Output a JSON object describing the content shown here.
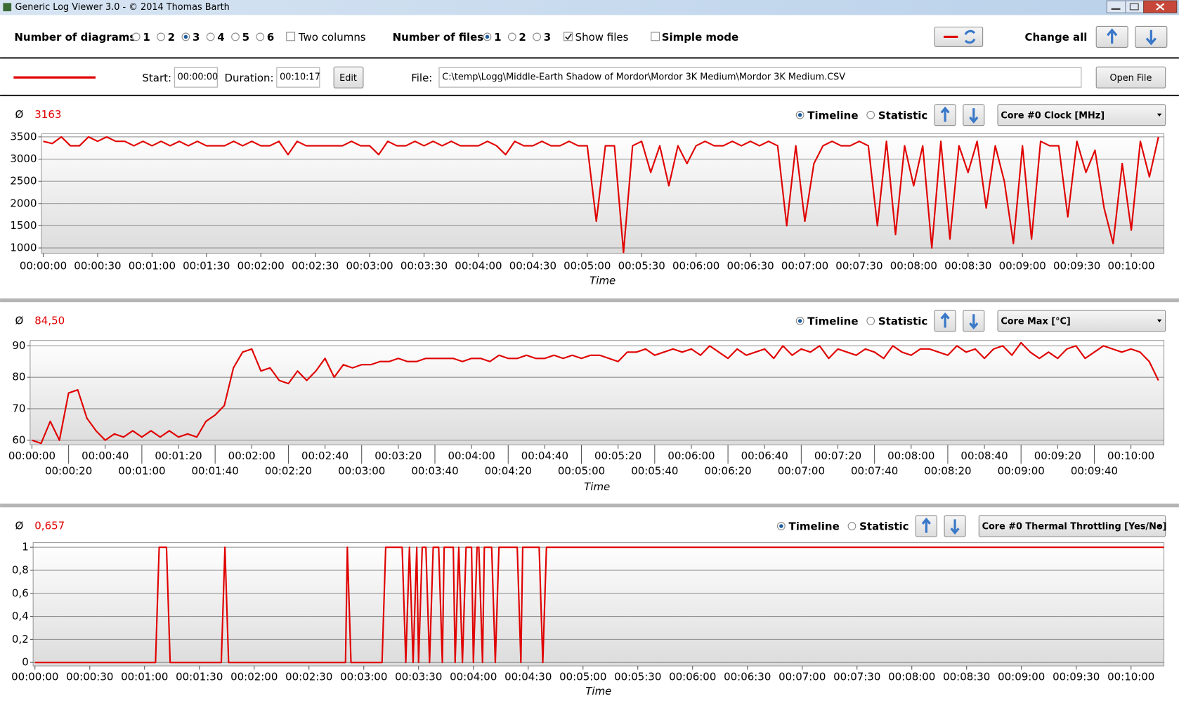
{
  "window": {
    "title": "Generic Log Viewer 3.0 - © 2014 Thomas Barth"
  },
  "toolbar": {
    "diagrams_label": "Number of diagrams",
    "diagram_options": [
      {
        "label": "1",
        "checked": false
      },
      {
        "label": "2",
        "checked": false
      },
      {
        "label": "3",
        "checked": true
      },
      {
        "label": "4",
        "checked": false
      },
      {
        "label": "5",
        "checked": false
      },
      {
        "label": "6",
        "checked": false
      }
    ],
    "two_columns": {
      "label": "Two columns",
      "checked": false
    },
    "files_label": "Number of files",
    "file_options": [
      {
        "label": "1",
        "checked": true
      },
      {
        "label": "2",
        "checked": false
      },
      {
        "label": "3",
        "checked": false
      }
    ],
    "show_files": {
      "label": "Show files",
      "checked": true
    },
    "simple_mode": {
      "label": "Simple mode",
      "checked": false
    },
    "change_all": "Change all"
  },
  "file_bar": {
    "start_label": "Start:",
    "start": "00:00:00",
    "duration_label": "Duration:",
    "duration": "00:10:17",
    "edit": "Edit",
    "file_label": "File:",
    "file_path": "C:\\temp\\Logg\\Middle-Earth Shadow of Mordor\\Mordor 3K Medium\\Mordor 3K Medium.CSV",
    "open_file": "Open File"
  },
  "panels": [
    {
      "average_symbol": "Ø",
      "average": "3163",
      "timeline": {
        "label": "Timeline",
        "checked": true
      },
      "statistic": {
        "label": "Statistic",
        "checked": false
      },
      "sensor": "Core #0 Clock [MHz]"
    },
    {
      "average_symbol": "Ø",
      "average": "84,50",
      "timeline": {
        "label": "Timeline",
        "checked": true
      },
      "statistic": {
        "label": "Statistic",
        "checked": false
      },
      "sensor": "Core Max [°C]"
    },
    {
      "average_symbol": "Ø",
      "average": "0,657",
      "timeline": {
        "label": "Timeline",
        "checked": true
      },
      "statistic": {
        "label": "Statistic",
        "checked": false
      },
      "sensor": "Core #0 Thermal Throttling [Yes/No]"
    }
  ],
  "chart_data": [
    {
      "type": "line",
      "x_label": "Time",
      "color": "#e00000",
      "grid": true,
      "xlim": [
        -1,
        618
      ],
      "ylim": [
        880,
        3570
      ],
      "x": [
        0,
        5,
        10,
        15,
        20,
        25,
        30,
        35,
        40,
        45,
        50,
        55,
        60,
        65,
        70,
        75,
        80,
        85,
        90,
        95,
        100,
        105,
        110,
        115,
        120,
        125,
        130,
        135,
        140,
        145,
        150,
        155,
        160,
        165,
        170,
        175,
        180,
        185,
        190,
        195,
        200,
        205,
        210,
        215,
        220,
        225,
        230,
        235,
        240,
        245,
        250,
        255,
        260,
        265,
        270,
        275,
        280,
        285,
        290,
        295,
        300,
        305,
        310,
        315,
        320,
        325,
        330,
        335,
        340,
        345,
        350,
        355,
        360,
        365,
        370,
        375,
        380,
        385,
        390,
        395,
        400,
        405,
        410,
        415,
        420,
        425,
        430,
        435,
        440,
        445,
        450,
        455,
        460,
        465,
        470,
        475,
        480,
        485,
        490,
        495,
        500,
        505,
        510,
        515,
        520,
        525,
        530,
        535,
        540,
        545,
        550,
        555,
        560,
        565,
        570,
        575,
        580,
        585,
        590,
        595,
        600,
        605,
        610,
        615
      ],
      "values": [
        3400,
        3350,
        3500,
        3300,
        3300,
        3500,
        3400,
        3500,
        3400,
        3400,
        3300,
        3400,
        3300,
        3400,
        3300,
        3400,
        3300,
        3400,
        3300,
        3300,
        3300,
        3400,
        3300,
        3400,
        3300,
        3300,
        3400,
        3100,
        3400,
        3300,
        3300,
        3300,
        3300,
        3300,
        3400,
        3300,
        3300,
        3100,
        3400,
        3300,
        3300,
        3400,
        3300,
        3400,
        3300,
        3400,
        3300,
        3300,
        3300,
        3400,
        3300,
        3100,
        3400,
        3300,
        3300,
        3400,
        3300,
        3300,
        3400,
        3300,
        3300,
        1600,
        3300,
        3300,
        900,
        3300,
        3400,
        2700,
        3300,
        2400,
        3300,
        2900,
        3300,
        3400,
        3300,
        3300,
        3400,
        3300,
        3400,
        3300,
        3400,
        3300,
        1500,
        3300,
        1600,
        2900,
        3300,
        3400,
        3300,
        3300,
        3400,
        3300,
        1500,
        3400,
        1300,
        3300,
        2400,
        3300,
        1000,
        3400,
        1200,
        3300,
        2700,
        3400,
        1900,
        3300,
        2500,
        1100,
        3300,
        1200,
        3400,
        3300,
        3300,
        1700,
        3400,
        2700,
        3200,
        1900,
        1100,
        2900,
        1400,
        3400,
        2600,
        3500
      ],
      "yticks": [
        1000,
        1500,
        2000,
        2500,
        3000,
        3500
      ],
      "xticks": [
        {
          "value": 0,
          "label": "00:00:00"
        },
        {
          "value": 30,
          "label": "00:00:30"
        },
        {
          "value": 60,
          "label": "00:01:00"
        },
        {
          "value": 90,
          "label": "00:01:30"
        },
        {
          "value": 120,
          "label": "00:02:00"
        },
        {
          "value": 150,
          "label": "00:02:30"
        },
        {
          "value": 180,
          "label": "00:03:00"
        },
        {
          "value": 210,
          "label": "00:03:30"
        },
        {
          "value": 240,
          "label": "00:04:00"
        },
        {
          "value": 270,
          "label": "00:04:30"
        },
        {
          "value": 300,
          "label": "00:05:00"
        },
        {
          "value": 330,
          "label": "00:05:30"
        },
        {
          "value": 360,
          "label": "00:06:00"
        },
        {
          "value": 390,
          "label": "00:06:30"
        },
        {
          "value": 420,
          "label": "00:07:00"
        },
        {
          "value": 450,
          "label": "00:07:30"
        },
        {
          "value": 480,
          "label": "00:08:00"
        },
        {
          "value": 510,
          "label": "00:08:30"
        },
        {
          "value": 540,
          "label": "00:09:00"
        },
        {
          "value": 570,
          "label": "00:09:30"
        },
        {
          "value": 600,
          "label": "00:10:00"
        }
      ]
    },
    {
      "type": "line",
      "x_label": "Time",
      "color": "#e00000",
      "grid": true,
      "xlim": [
        -1,
        618
      ],
      "ylim": [
        58.5,
        91.7
      ],
      "x": [
        0,
        5,
        10,
        15,
        20,
        25,
        30,
        35,
        40,
        45,
        50,
        55,
        60,
        65,
        70,
        75,
        80,
        85,
        90,
        95,
        100,
        105,
        110,
        115,
        120,
        125,
        130,
        135,
        140,
        145,
        150,
        155,
        160,
        165,
        170,
        175,
        180,
        185,
        190,
        195,
        200,
        205,
        210,
        215,
        220,
        225,
        230,
        235,
        240,
        245,
        250,
        255,
        260,
        265,
        270,
        275,
        280,
        285,
        290,
        295,
        300,
        305,
        310,
        315,
        320,
        325,
        330,
        335,
        340,
        345,
        350,
        355,
        360,
        365,
        370,
        375,
        380,
        385,
        390,
        395,
        400,
        405,
        410,
        415,
        420,
        425,
        430,
        435,
        440,
        445,
        450,
        455,
        460,
        465,
        470,
        475,
        480,
        485,
        490,
        495,
        500,
        505,
        510,
        515,
        520,
        525,
        530,
        535,
        540,
        545,
        550,
        555,
        560,
        565,
        570,
        575,
        580,
        585,
        590,
        595,
        600,
        605,
        610,
        615
      ],
      "values": [
        60,
        59,
        66,
        60,
        75,
        76,
        67,
        63,
        60,
        62,
        61,
        63,
        61,
        63,
        61,
        63,
        61,
        62,
        61,
        66,
        68,
        71,
        83,
        88,
        89,
        82,
        83,
        79,
        78,
        82,
        79,
        82,
        86,
        80,
        84,
        83,
        84,
        84,
        85,
        85,
        86,
        85,
        85,
        86,
        86,
        86,
        86,
        85,
        86,
        86,
        85,
        87,
        86,
        86,
        87,
        86,
        86,
        87,
        86,
        87,
        86,
        87,
        87,
        86,
        85,
        88,
        88,
        89,
        87,
        88,
        89,
        88,
        89,
        87,
        90,
        88,
        86,
        89,
        87,
        88,
        89,
        86,
        90,
        87,
        89,
        88,
        90,
        86,
        89,
        88,
        87,
        89,
        88,
        86,
        90,
        88,
        87,
        89,
        89,
        88,
        87,
        90,
        88,
        89,
        86,
        89,
        90,
        87,
        91,
        88,
        86,
        88,
        86,
        89,
        90,
        86,
        88,
        90,
        89,
        88,
        89,
        88,
        85,
        79
      ],
      "yticks": [
        60,
        70,
        80,
        90
      ],
      "xticks": [
        {
          "value": 0,
          "label": "00:00:00"
        },
        {
          "value": 20,
          "label": "00:00:20"
        },
        {
          "value": 40,
          "label": "00:00:40"
        },
        {
          "value": 60,
          "label": "00:01:00"
        },
        {
          "value": 80,
          "label": "00:01:20"
        },
        {
          "value": 100,
          "label": "00:01:40"
        },
        {
          "value": 120,
          "label": "00:02:00"
        },
        {
          "value": 140,
          "label": "00:02:20"
        },
        {
          "value": 160,
          "label": "00:02:40"
        },
        {
          "value": 180,
          "label": "00:03:00"
        },
        {
          "value": 200,
          "label": "00:03:20"
        },
        {
          "value": 220,
          "label": "00:03:40"
        },
        {
          "value": 240,
          "label": "00:04:00"
        },
        {
          "value": 260,
          "label": "00:04:20"
        },
        {
          "value": 280,
          "label": "00:04:40"
        },
        {
          "value": 300,
          "label": "00:05:00"
        },
        {
          "value": 320,
          "label": "00:05:20"
        },
        {
          "value": 340,
          "label": "00:05:40"
        },
        {
          "value": 360,
          "label": "00:06:00"
        },
        {
          "value": 380,
          "label": "00:06:20"
        },
        {
          "value": 400,
          "label": "00:06:40"
        },
        {
          "value": 420,
          "label": "00:07:00"
        },
        {
          "value": 440,
          "label": "00:07:20"
        },
        {
          "value": 460,
          "label": "00:07:40"
        },
        {
          "value": 480,
          "label": "00:08:00"
        },
        {
          "value": 500,
          "label": "00:08:20"
        },
        {
          "value": 520,
          "label": "00:08:40"
        },
        {
          "value": 540,
          "label": "00:09:00"
        },
        {
          "value": 560,
          "label": "00:09:20"
        },
        {
          "value": 580,
          "label": "00:09:40"
        },
        {
          "value": 600,
          "label": "00:10:00"
        }
      ]
    },
    {
      "type": "line",
      "x_label": "Time",
      "color": "#e00000",
      "grid": true,
      "xlim": [
        -1,
        618
      ],
      "ylim": [
        -0.03,
        1.04
      ],
      "x": [
        0,
        66,
        68,
        72,
        74,
        102,
        104,
        106,
        170,
        171,
        173,
        190,
        192,
        201,
        203,
        205,
        207,
        209,
        210,
        212,
        214,
        216,
        218,
        221,
        223,
        224,
        229,
        230,
        232,
        234,
        236,
        239,
        240,
        242,
        243,
        245,
        246,
        250,
        252,
        254,
        264,
        266,
        267,
        276,
        278,
        280,
        618
      ],
      "values": [
        0,
        0,
        1,
        1,
        0,
        0,
        1,
        0,
        0,
        1,
        0,
        0,
        1,
        1,
        0,
        1,
        0,
        1,
        0,
        1,
        1,
        0,
        1,
        1,
        0,
        1,
        1,
        0,
        1,
        0,
        1,
        1,
        0,
        1,
        1,
        0,
        1,
        1,
        0,
        1,
        1,
        0,
        1,
        1,
        0,
        1,
        1
      ],
      "yticks": [
        0,
        {
          "value": 0.2,
          "label": "0,2"
        },
        {
          "value": 0.4,
          "label": "0,4"
        },
        {
          "value": 0.6,
          "label": "0,6"
        },
        {
          "value": 0.8,
          "label": "0,8"
        },
        1
      ],
      "xticks": [
        {
          "value": 0,
          "label": "00:00:00"
        },
        {
          "value": 30,
          "label": "00:00:30"
        },
        {
          "value": 60,
          "label": "00:01:00"
        },
        {
          "value": 90,
          "label": "00:01:30"
        },
        {
          "value": 120,
          "label": "00:02:00"
        },
        {
          "value": 150,
          "label": "00:02:30"
        },
        {
          "value": 180,
          "label": "00:03:00"
        },
        {
          "value": 210,
          "label": "00:03:30"
        },
        {
          "value": 240,
          "label": "00:04:00"
        },
        {
          "value": 270,
          "label": "00:04:30"
        },
        {
          "value": 300,
          "label": "00:05:00"
        },
        {
          "value": 330,
          "label": "00:05:30"
        },
        {
          "value": 360,
          "label": "00:06:00"
        },
        {
          "value": 390,
          "label": "00:06:30"
        },
        {
          "value": 420,
          "label": "00:07:00"
        },
        {
          "value": 450,
          "label": "00:07:30"
        },
        {
          "value": 480,
          "label": "00:08:00"
        },
        {
          "value": 510,
          "label": "00:08:30"
        },
        {
          "value": 540,
          "label": "00:09:00"
        },
        {
          "value": 570,
          "label": "00:09:30"
        },
        {
          "value": 600,
          "label": "00:10:00"
        }
      ]
    }
  ]
}
